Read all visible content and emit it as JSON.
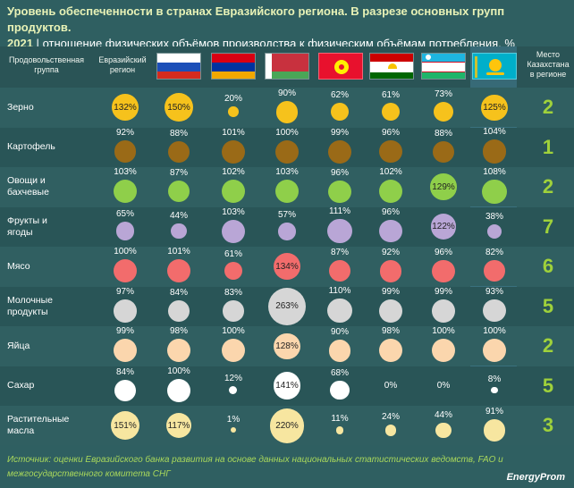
{
  "title": "Уровень обеспеченности в странах Евразийского региона. В разрезе основных групп продуктов.",
  "year": "2021",
  "subtitle": "отношение физических объёмов производства к физическим объёмам потребления, %",
  "header": {
    "group": "Продовольственная группа",
    "region": "Евразийский регион",
    "rank": "Место Казахстана в регионе"
  },
  "colors": {
    "Зерно": "#f6c21c",
    "Картофель": "#9a6a17",
    "Овощи и бахчевые": "#8fcf4a",
    "Фрукты и ягоды": "#b9a6d6",
    "Мясо": "#f26c6c",
    "Молочные продукты": "#d6d6d6",
    "Яйца": "#fbd6ad",
    "Сахар": "#ffffff",
    "Растительные масла": "#f7e6a0"
  },
  "chart_data": {
    "type": "table",
    "columns": [
      "Евразийский регион",
      "Россия",
      "Армения",
      "Беларусь",
      "Кыргызстан",
      "Таджикистан",
      "Узбекистан",
      "Казахстан"
    ],
    "rows": [
      {
        "group": "Зерно",
        "values": [
          132,
          150,
          20,
          90,
          62,
          61,
          73,
          125
        ],
        "rank": 2
      },
      {
        "group": "Картофель",
        "values": [
          92,
          88,
          101,
          100,
          99,
          96,
          88,
          104
        ],
        "rank": 1
      },
      {
        "group": "Овощи и бахчевые",
        "values": [
          103,
          87,
          102,
          103,
          96,
          102,
          129,
          108
        ],
        "rank": 2
      },
      {
        "group": "Фрукты и ягоды",
        "values": [
          65,
          44,
          103,
          57,
          111,
          96,
          122,
          38
        ],
        "rank": 7
      },
      {
        "group": "Мясо",
        "values": [
          100,
          101,
          61,
          134,
          87,
          92,
          96,
          82
        ],
        "rank": 6
      },
      {
        "group": "Молочные продукты",
        "values": [
          97,
          84,
          83,
          263,
          110,
          99,
          99,
          93
        ],
        "rank": 5
      },
      {
        "group": "Яйца",
        "values": [
          99,
          98,
          100,
          128,
          90,
          98,
          100,
          100
        ],
        "rank": 2
      },
      {
        "group": "Сахар",
        "values": [
          84,
          100,
          12,
          141,
          68,
          0,
          0,
          8
        ],
        "rank": 5
      },
      {
        "group": "Растительные масла",
        "values": [
          151,
          117,
          1,
          220,
          11,
          24,
          44,
          91
        ],
        "rank": 3
      }
    ]
  },
  "row_labels": [
    [
      "Зерно"
    ],
    [
      "Картофель"
    ],
    [
      "Овощи и",
      "бахчевые"
    ],
    [
      "Фрукты и",
      "ягоды"
    ],
    [
      "Мясо"
    ],
    [
      "Молочные",
      "продукты"
    ],
    [
      "Яйца"
    ],
    [
      "Сахар"
    ],
    [
      "Растительные",
      "масла"
    ]
  ],
  "source": "Источник: оценки Евразийского банка развития на основе данных национальных статистических ведомств, FAO и межгосударственного комитета СНГ",
  "brand": "EnergyProm"
}
